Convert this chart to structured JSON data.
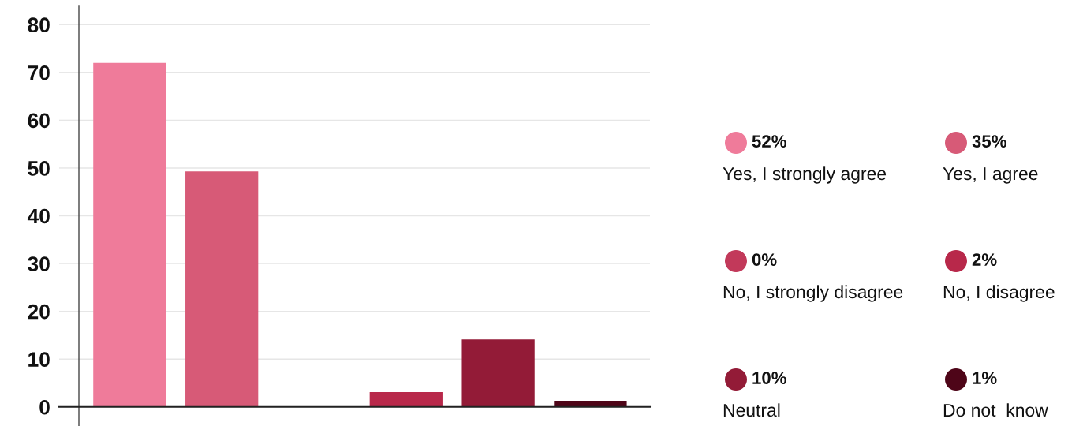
{
  "chart_data": {
    "type": "bar",
    "categories": [
      null,
      null,
      null,
      null,
      null,
      null
    ],
    "series": [
      {
        "name": "Yes, I strongly agree",
        "color": "#ef7b9a",
        "values": [
          72,
          null,
          null,
          null,
          null,
          null
        ]
      },
      {
        "name": "Yes, I agree",
        "color": "#d75a77",
        "values": [
          null,
          49.3,
          null,
          null,
          null,
          null
        ]
      },
      {
        "name": "No, I strongly disagree",
        "color": "#c2395a",
        "values": [
          null,
          null,
          0,
          null,
          null,
          null
        ]
      },
      {
        "name": "No, I disagree",
        "color": "#b8284a",
        "values": [
          null,
          null,
          null,
          3.1,
          null,
          null
        ]
      },
      {
        "name": "Neutral",
        "color": "#931b37",
        "values": [
          null,
          null,
          null,
          null,
          14.1,
          null
        ]
      },
      {
        "name": "Do not  know",
        "color": "#4e0518",
        "values": [
          null,
          null,
          null,
          null,
          null,
          1.3
        ]
      }
    ],
    "annotations": [
      "52%",
      "35%",
      "0%",
      "2%",
      "10%",
      "1%"
    ],
    "ylim": [
      -4,
      84
    ],
    "yticks": [
      0,
      10,
      20,
      30,
      40,
      50,
      60,
      70,
      80
    ],
    "grid": "y",
    "legend": "right"
  }
}
